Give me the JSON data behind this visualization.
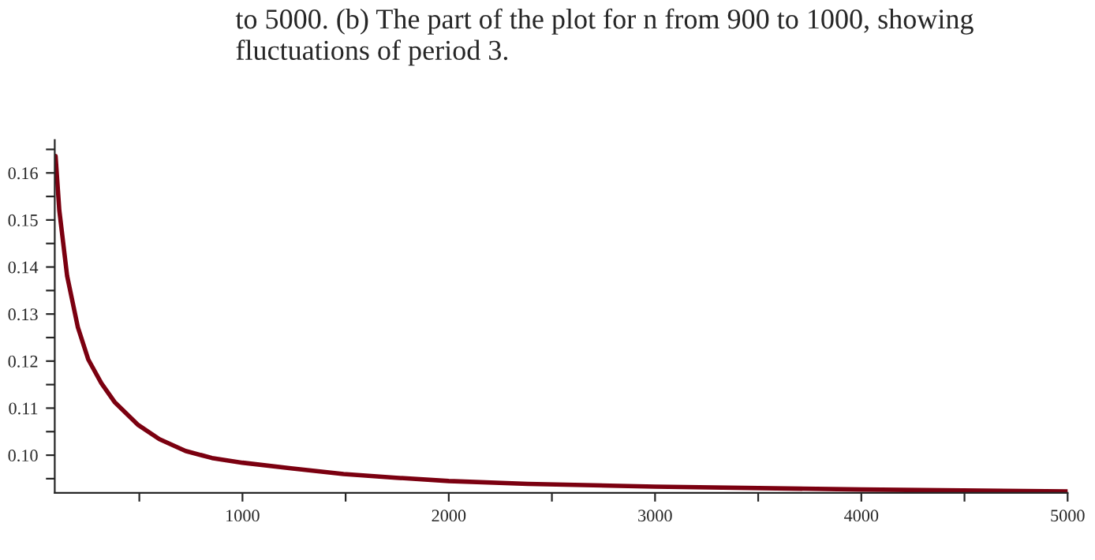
{
  "chart_data": {
    "type": "line",
    "title": "to 5000. (b) The part of the plot for n from 900 to 1000, showing\nfluctuations of period 3.",
    "x": [
      94,
      112,
      150,
      202,
      253,
      316,
      380,
      495,
      597,
      724,
      852,
      1000,
      1235,
      1490,
      1745,
      2000,
      2383,
      3000,
      4000,
      5000
    ],
    "series": [
      {
        "color": "#7b0010",
        "values": [
          0.1636,
          0.1521,
          0.1381,
          0.1272,
          0.1203,
          0.1153,
          0.1113,
          0.1064,
          0.1034,
          0.1009,
          0.0994,
          0.0984,
          0.0972,
          0.096,
          0.0952,
          0.0945,
          0.0939,
          0.0933,
          0.0927,
          0.0923
        ]
      }
    ],
    "xlim": [
      90,
      5000
    ],
    "ylim": [
      0.092,
      0.167
    ],
    "xticks": [
      {
        "value": 500,
        "label": null
      },
      1000,
      {
        "value": 1500,
        "label": null
      },
      2000,
      {
        "value": 2500,
        "label": null
      },
      3000,
      {
        "value": 3500,
        "label": null
      },
      4000,
      {
        "value": 4500,
        "label": null
      },
      5000
    ],
    "yticks": [
      {
        "value": 0.095,
        "label": null
      },
      {
        "value": 0.1,
        "label": "0.10"
      },
      {
        "value": 0.105,
        "label": null
      },
      {
        "value": 0.11,
        "label": "0.11"
      },
      {
        "value": 0.115,
        "label": null
      },
      {
        "value": 0.12,
        "label": "0.12"
      },
      {
        "value": 0.125,
        "label": null
      },
      {
        "value": 0.13,
        "label": "0.13"
      },
      {
        "value": 0.135,
        "label": null
      },
      {
        "value": 0.14,
        "label": "0.14"
      },
      {
        "value": 0.145,
        "label": null
      },
      {
        "value": 0.15,
        "label": "0.15"
      },
      {
        "value": 0.155,
        "label": null
      },
      {
        "value": 0.16,
        "label": "0.16"
      },
      {
        "value": 0.165,
        "label": null
      }
    ],
    "grid": false,
    "legend": false,
    "marker": "none",
    "line_style": "solid"
  }
}
